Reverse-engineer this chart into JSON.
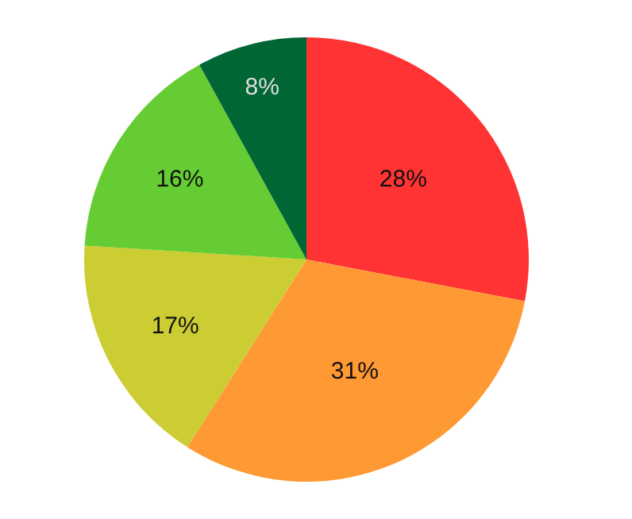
{
  "chart_data": {
    "type": "pie",
    "categories": [
      null,
      null,
      null,
      null,
      null
    ],
    "values": [
      28,
      31,
      17,
      16,
      8
    ],
    "value_labels": [
      "28%",
      "31%",
      "17%",
      "16%",
      "8%"
    ],
    "colors": [
      "#ff3333",
      "#ff9933",
      "#cccc33",
      "#66cc33",
      "#006633"
    ],
    "legend": false
  }
}
